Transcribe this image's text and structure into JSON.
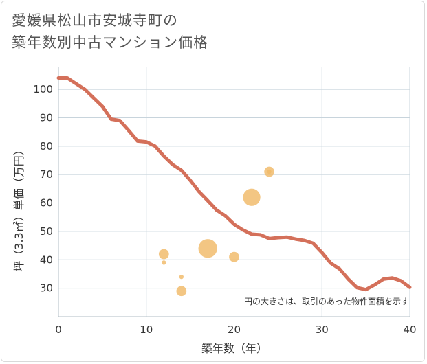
{
  "title_line1": "愛媛県松山市安城寺町の",
  "title_line2": "築年数別中古マンション価格",
  "chart_data": {
    "type": "scatter",
    "title": "愛媛県松山市安城寺町の築年数別中古マンション価格",
    "xlabel": "築年数（年）",
    "ylabel": "坪（3.3㎡）単価（万円）",
    "xlim": [
      0,
      40
    ],
    "ylim": [
      20,
      108
    ],
    "xticks": [
      0,
      10,
      20,
      30,
      40
    ],
    "yticks": [
      30,
      40,
      50,
      60,
      70,
      80,
      90,
      100
    ],
    "grid": true,
    "annotation": "円の大きさは、取引のあった物件面積を示す",
    "colors": {
      "line": "#d4705a",
      "bubble": "#f0b968",
      "grid": "#c8d4dc"
    },
    "series": [
      {
        "name": "price-trend",
        "kind": "line",
        "x": [
          0,
          1,
          2,
          3,
          4,
          5,
          6,
          7,
          8,
          9,
          10,
          11,
          12,
          13,
          14,
          15,
          16,
          17,
          18,
          19,
          20,
          21,
          22,
          23,
          24,
          25,
          26,
          27,
          28,
          29,
          30,
          31,
          32,
          33,
          34,
          35,
          36,
          37,
          38,
          39,
          40
        ],
        "y": [
          104.0,
          104.0,
          102.0,
          100.0,
          97.0,
          94.0,
          89.5,
          89.0,
          85.5,
          81.8,
          81.5,
          80.0,
          76.5,
          73.5,
          71.5,
          68.0,
          64.0,
          60.8,
          57.5,
          55.5,
          52.5,
          50.5,
          49.0,
          48.8,
          47.5,
          47.8,
          48.0,
          47.3,
          46.8,
          45.8,
          42.5,
          38.8,
          36.8,
          33.2,
          30.2,
          29.5,
          31.2,
          33.2,
          33.6,
          32.6,
          30.3
        ]
      },
      {
        "name": "transactions",
        "kind": "bubble",
        "points": [
          {
            "x": 12,
            "y": 42,
            "size": 3
          },
          {
            "x": 12,
            "y": 39,
            "size": 1
          },
          {
            "x": 14,
            "y": 34,
            "size": 1
          },
          {
            "x": 14,
            "y": 29,
            "size": 3
          },
          {
            "x": 17,
            "y": 44,
            "size": 8
          },
          {
            "x": 20,
            "y": 41,
            "size": 3
          },
          {
            "x": 22,
            "y": 62,
            "size": 7
          },
          {
            "x": 24,
            "y": 71,
            "size": 3
          },
          {
            "x": 24,
            "y": 71,
            "size": 1
          }
        ]
      }
    ]
  }
}
